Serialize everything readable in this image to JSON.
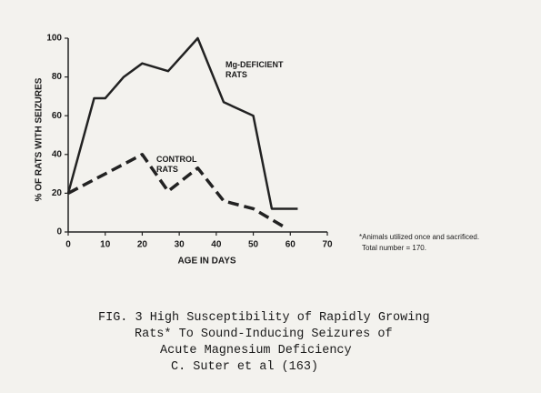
{
  "chart_data": {
    "type": "line",
    "y_label": "% OF RATS WITH SEIZURES",
    "x_label": "AGE IN DAYS",
    "xlim": [
      0,
      70
    ],
    "xticks": [
      0,
      10,
      20,
      30,
      40,
      50,
      60,
      70
    ],
    "ylim": [
      0,
      100
    ],
    "yticks": [
      0,
      20,
      40,
      60,
      80,
      100
    ],
    "series": [
      {
        "name": "Mg-DEFICIENT RATS",
        "color": "#222222",
        "style": "solid",
        "x": [
          0,
          7,
          10,
          15,
          20,
          27,
          35,
          42,
          50,
          55,
          62
        ],
        "values": [
          20,
          69,
          69,
          80,
          87,
          83,
          100,
          67,
          60,
          12,
          12
        ]
      },
      {
        "name": "CONTROL RATS",
        "color": "#222222",
        "style": "dashed",
        "x": [
          0,
          20,
          27,
          35,
          42,
          50,
          58
        ],
        "values": [
          20,
          40,
          21,
          33,
          16,
          12,
          3
        ]
      }
    ],
    "note": [
      "*Animals utilized once and sacrificed.",
      "Total number = 170."
    ],
    "caption": [
      "FIG. 3 High Susceptibility of Rapidly Growing",
      "Rats* To Sound-Inducing Seizures of",
      "Acute Magnesium Deficiency",
      "C. Suter et al (163)"
    ]
  }
}
